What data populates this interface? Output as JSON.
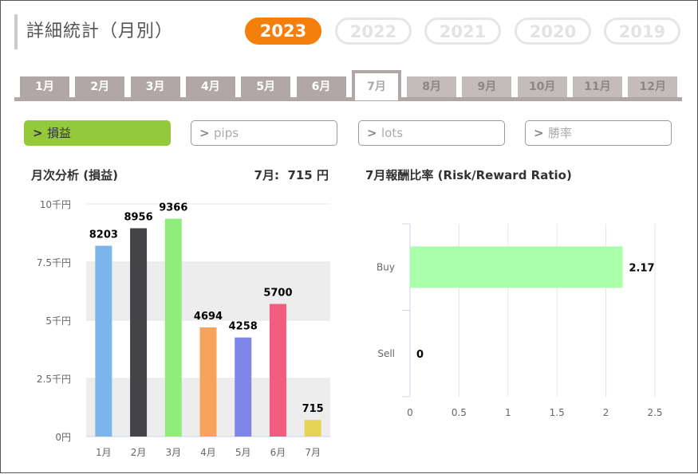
{
  "header": {
    "title": "詳細統計（月別）"
  },
  "years": [
    {
      "label": "2023",
      "active": true
    },
    {
      "label": "2022",
      "active": false
    },
    {
      "label": "2021",
      "active": false
    },
    {
      "label": "2020",
      "active": false
    },
    {
      "label": "2019",
      "active": false
    }
  ],
  "months": [
    {
      "label": "1月",
      "state": "enabled"
    },
    {
      "label": "2月",
      "state": "enabled"
    },
    {
      "label": "3月",
      "state": "enabled"
    },
    {
      "label": "4月",
      "state": "enabled"
    },
    {
      "label": "5月",
      "state": "enabled"
    },
    {
      "label": "6月",
      "state": "enabled"
    },
    {
      "label": "7月",
      "state": "active"
    },
    {
      "label": "8月",
      "state": "disabled"
    },
    {
      "label": "9月",
      "state": "disabled"
    },
    {
      "label": "10月",
      "state": "disabled"
    },
    {
      "label": "11月",
      "state": "disabled"
    },
    {
      "label": "12月",
      "state": "disabled"
    }
  ],
  "metrics": [
    {
      "label": "損益",
      "active": true
    },
    {
      "label": "pips",
      "active": false
    },
    {
      "label": "lots",
      "active": false
    },
    {
      "label": "勝率",
      "active": false
    }
  ],
  "monthly": {
    "title": "月次分析 (損益)",
    "month": "7月:",
    "value": "715",
    "unit": "円"
  },
  "ratio": {
    "title": "7月報酬比率 (Risk/Reward Ratio)"
  },
  "chart_data": [
    {
      "type": "bar",
      "categories": [
        "1月",
        "2月",
        "3月",
        "4月",
        "5月",
        "6月",
        "7月"
      ],
      "values": [
        8203,
        8956,
        9366,
        4694,
        4258,
        5700,
        715
      ],
      "colors": [
        "#7cb5ec",
        "#434348",
        "#90ed7d",
        "#f7a35c",
        "#8085e9",
        "#f15c80",
        "#e4d354"
      ],
      "ylim": [
        0,
        10000
      ],
      "yticks": [
        0,
        2500,
        5000,
        7500,
        10000
      ],
      "ytick_labels": [
        "0円",
        "2.5千円",
        "5千円",
        "7.5千円",
        "10千円"
      ],
      "grid": true
    },
    {
      "type": "bar",
      "orientation": "horizontal",
      "categories": [
        "Buy",
        "Sell"
      ],
      "values": [
        2.17,
        0
      ],
      "value_labels": [
        "2.17",
        "0"
      ],
      "color": "#aaffaa",
      "xlim": [
        0,
        2.5
      ],
      "xticks": [
        0,
        0.5,
        1,
        1.5,
        2,
        2.5
      ],
      "xtick_labels": [
        "0",
        "0.5",
        "1",
        "1.5",
        "2",
        "2.5"
      ],
      "grid": true
    }
  ]
}
